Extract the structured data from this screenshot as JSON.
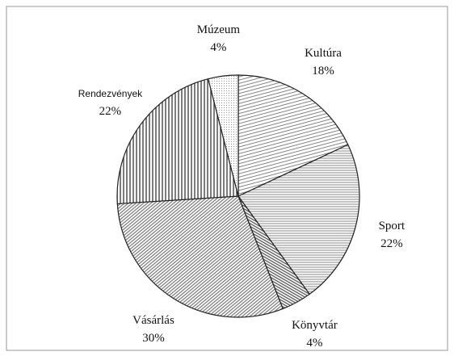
{
  "chart_data": {
    "type": "pie",
    "categories": [
      "Kultúra",
      "Sport",
      "Könyvtár",
      "Vásárlás",
      "Rendezvények",
      "Múzeum"
    ],
    "values": [
      18,
      22,
      4,
      30,
      22,
      4
    ],
    "value_labels": [
      "18%",
      "22%",
      "4%",
      "30%",
      "22%",
      "4%"
    ],
    "colors": [
      "#666666",
      "#888888",
      "#555555",
      "#777777",
      "#444444",
      "#999999"
    ]
  }
}
